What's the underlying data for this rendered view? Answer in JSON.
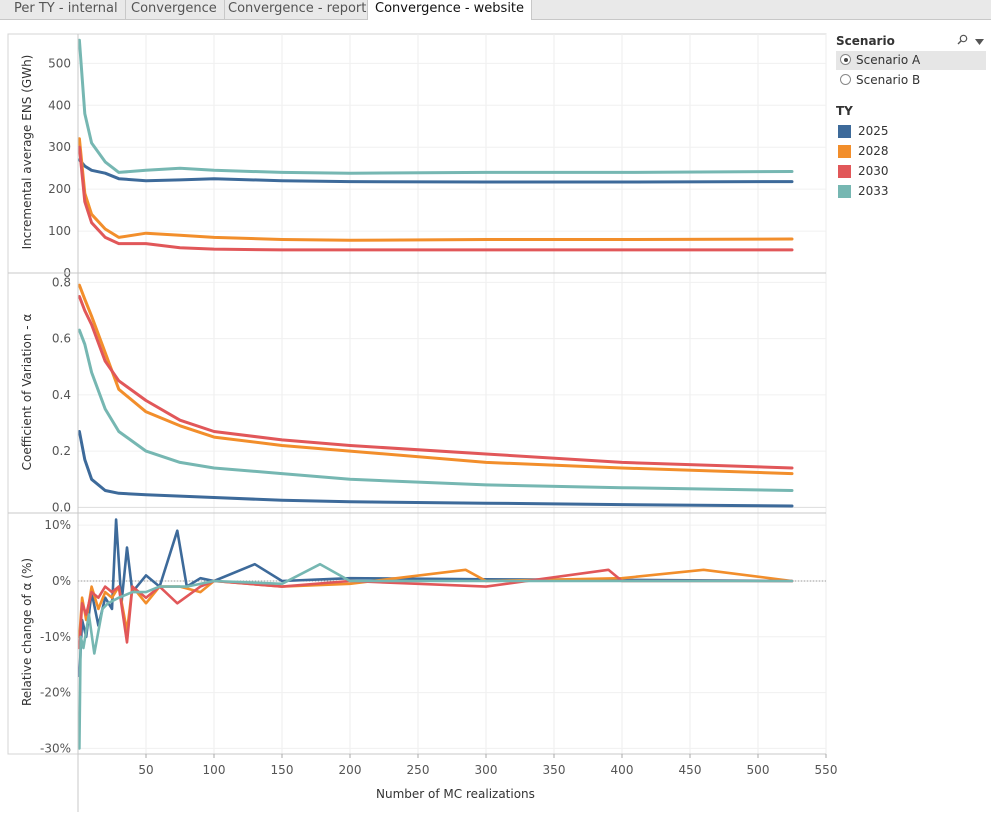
{
  "tabs": [
    {
      "label": "Per TY - internal",
      "active": false
    },
    {
      "label": "Convergence",
      "active": false
    },
    {
      "label": "Convergence - report",
      "active": false
    },
    {
      "label": "Convergence - website",
      "active": true
    }
  ],
  "legend": {
    "scenario_title": "Scenario",
    "scenarios": [
      {
        "label": "Scenario A",
        "selected": true
      },
      {
        "label": "Scenario B",
        "selected": false
      }
    ],
    "ty_title": "TY",
    "ty_items": [
      {
        "label": "2025",
        "color": "#3d6a9a"
      },
      {
        "label": "2028",
        "color": "#f28e2b"
      },
      {
        "label": "2030",
        "color": "#e15759"
      },
      {
        "label": "2033",
        "color": "#76b7b2"
      }
    ],
    "search_icon": "search-icon",
    "menu_icon": "dropdown-arrow-icon"
  },
  "chart_data": {
    "type": "line",
    "xlabel": "Number of MC realizations",
    "xlim": [
      0,
      550
    ],
    "x_ticks": [
      "50",
      "100",
      "150",
      "200",
      "250",
      "300",
      "350",
      "400",
      "450",
      "500",
      "550"
    ],
    "panes": [
      {
        "ylabel": "Incremental average ENS (GWh)",
        "ylim": [
          0,
          570
        ],
        "y_ticks": [
          "0",
          "100",
          "200",
          "300",
          "400",
          "500"
        ],
        "series": [
          {
            "name": "2025",
            "x": [
              1,
              5,
              10,
              20,
              30,
              50,
              75,
              100,
              150,
              200,
              300,
              400,
              525
            ],
            "y": [
              270,
              255,
              245,
              238,
              225,
              220,
              222,
              225,
              220,
              218,
              217,
              217,
              218
            ]
          },
          {
            "name": "2028",
            "x": [
              1,
              5,
              10,
              20,
              30,
              50,
              75,
              100,
              150,
              200,
              300,
              400,
              525
            ],
            "y": [
              320,
              190,
              140,
              105,
              85,
              95,
              90,
              85,
              80,
              78,
              80,
              80,
              81
            ]
          },
          {
            "name": "2030",
            "x": [
              1,
              5,
              10,
              20,
              30,
              50,
              75,
              100,
              150,
              200,
              300,
              400,
              525
            ],
            "y": [
              300,
              170,
              120,
              85,
              70,
              70,
              60,
              57,
              55,
              55,
              55,
              55,
              55
            ]
          },
          {
            "name": "2033",
            "x": [
              1,
              5,
              10,
              20,
              30,
              50,
              75,
              100,
              150,
              200,
              300,
              400,
              525
            ],
            "y": [
              555,
              380,
              310,
              265,
              240,
              245,
              250,
              245,
              240,
              238,
              240,
              240,
              242
            ]
          }
        ]
      },
      {
        "ylabel": "Coefficient of Variation - α",
        "ylim": [
          -0.02,
          0.83
        ],
        "y_ticks": [
          "0.0",
          "0.2",
          "0.4",
          "0.6",
          "0.8"
        ],
        "series": [
          {
            "name": "2025",
            "x": [
              1,
              5,
              10,
              20,
              30,
              50,
              75,
              100,
              150,
              200,
              300,
              400,
              525
            ],
            "y": [
              0.27,
              0.17,
              0.1,
              0.06,
              0.05,
              0.045,
              0.04,
              0.035,
              0.025,
              0.02,
              0.015,
              0.01,
              0.005
            ]
          },
          {
            "name": "2028",
            "x": [
              1,
              5,
              10,
              20,
              30,
              50,
              75,
              100,
              150,
              200,
              300,
              400,
              525
            ],
            "y": [
              0.79,
              0.74,
              0.68,
              0.55,
              0.42,
              0.34,
              0.29,
              0.25,
              0.22,
              0.2,
              0.16,
              0.14,
              0.12
            ]
          },
          {
            "name": "2030",
            "x": [
              1,
              5,
              10,
              20,
              30,
              50,
              75,
              100,
              150,
              200,
              300,
              400,
              525
            ],
            "y": [
              0.75,
              0.7,
              0.65,
              0.52,
              0.45,
              0.38,
              0.31,
              0.27,
              0.24,
              0.22,
              0.19,
              0.16,
              0.14
            ]
          },
          {
            "name": "2033",
            "x": [
              1,
              5,
              10,
              20,
              30,
              50,
              75,
              100,
              150,
              200,
              300,
              400,
              525
            ],
            "y": [
              0.63,
              0.58,
              0.48,
              0.35,
              0.27,
              0.2,
              0.16,
              0.14,
              0.12,
              0.1,
              0.08,
              0.07,
              0.06
            ]
          }
        ]
      },
      {
        "ylabel": "Relative change of α (%)",
        "ylim": [
          -31,
          12
        ],
        "y_ticks": [
          "-30%",
          "-20%",
          "-10%",
          "0%",
          "10%"
        ],
        "series": [
          {
            "name": "2025",
            "x": [
              1,
              3,
              6,
              10,
              15,
              20,
              25,
              28,
              32,
              36,
              40,
              50,
              60,
              73,
              80,
              90,
              100,
              130,
              150,
              200,
              300,
              400,
              525
            ],
            "y": [
              -17,
              -7,
              -10,
              -2,
              -8,
              -3,
              -5,
              11,
              -4,
              6,
              -2,
              1,
              -1,
              9,
              -1,
              0.5,
              0,
              3,
              0,
              0.5,
              0.3,
              0.2,
              0
            ]
          },
          {
            "name": "2028",
            "x": [
              1,
              3,
              6,
              10,
              15,
              20,
              25,
              30,
              36,
              40,
              50,
              60,
              75,
              90,
              100,
              150,
              200,
              285,
              300,
              400,
              460,
              525
            ],
            "y": [
              -10,
              -3,
              -7,
              -1,
              -5,
              -2,
              -3,
              -1,
              -9,
              -1,
              -4,
              -1,
              -1,
              -2,
              0,
              -1,
              -0.5,
              2,
              0,
              0.5,
              2,
              0
            ]
          },
          {
            "name": "2030",
            "x": [
              1,
              3,
              6,
              10,
              15,
              20,
              25,
              30,
              36,
              40,
              50,
              60,
              73,
              90,
              100,
              150,
              200,
              300,
              390,
              400,
              525
            ],
            "y": [
              -12,
              -4,
              -6,
              -2,
              -3,
              -1,
              -2,
              -1,
              -11,
              -1,
              -3,
              -1,
              -4,
              -1,
              0,
              -1,
              0,
              -1,
              2,
              0,
              0
            ]
          },
          {
            "name": "2033",
            "x": [
              1,
              2,
              4,
              8,
              12,
              18,
              22,
              30,
              40,
              50,
              60,
              80,
              100,
              150,
              178,
              200,
              300,
              400,
              525
            ],
            "y": [
              -30,
              -10,
              -12,
              -6,
              -13,
              -5,
              -4,
              -3,
              -2,
              -2,
              -1,
              -1,
              0,
              -0.5,
              3,
              0,
              0,
              0,
              0
            ]
          }
        ]
      }
    ]
  }
}
